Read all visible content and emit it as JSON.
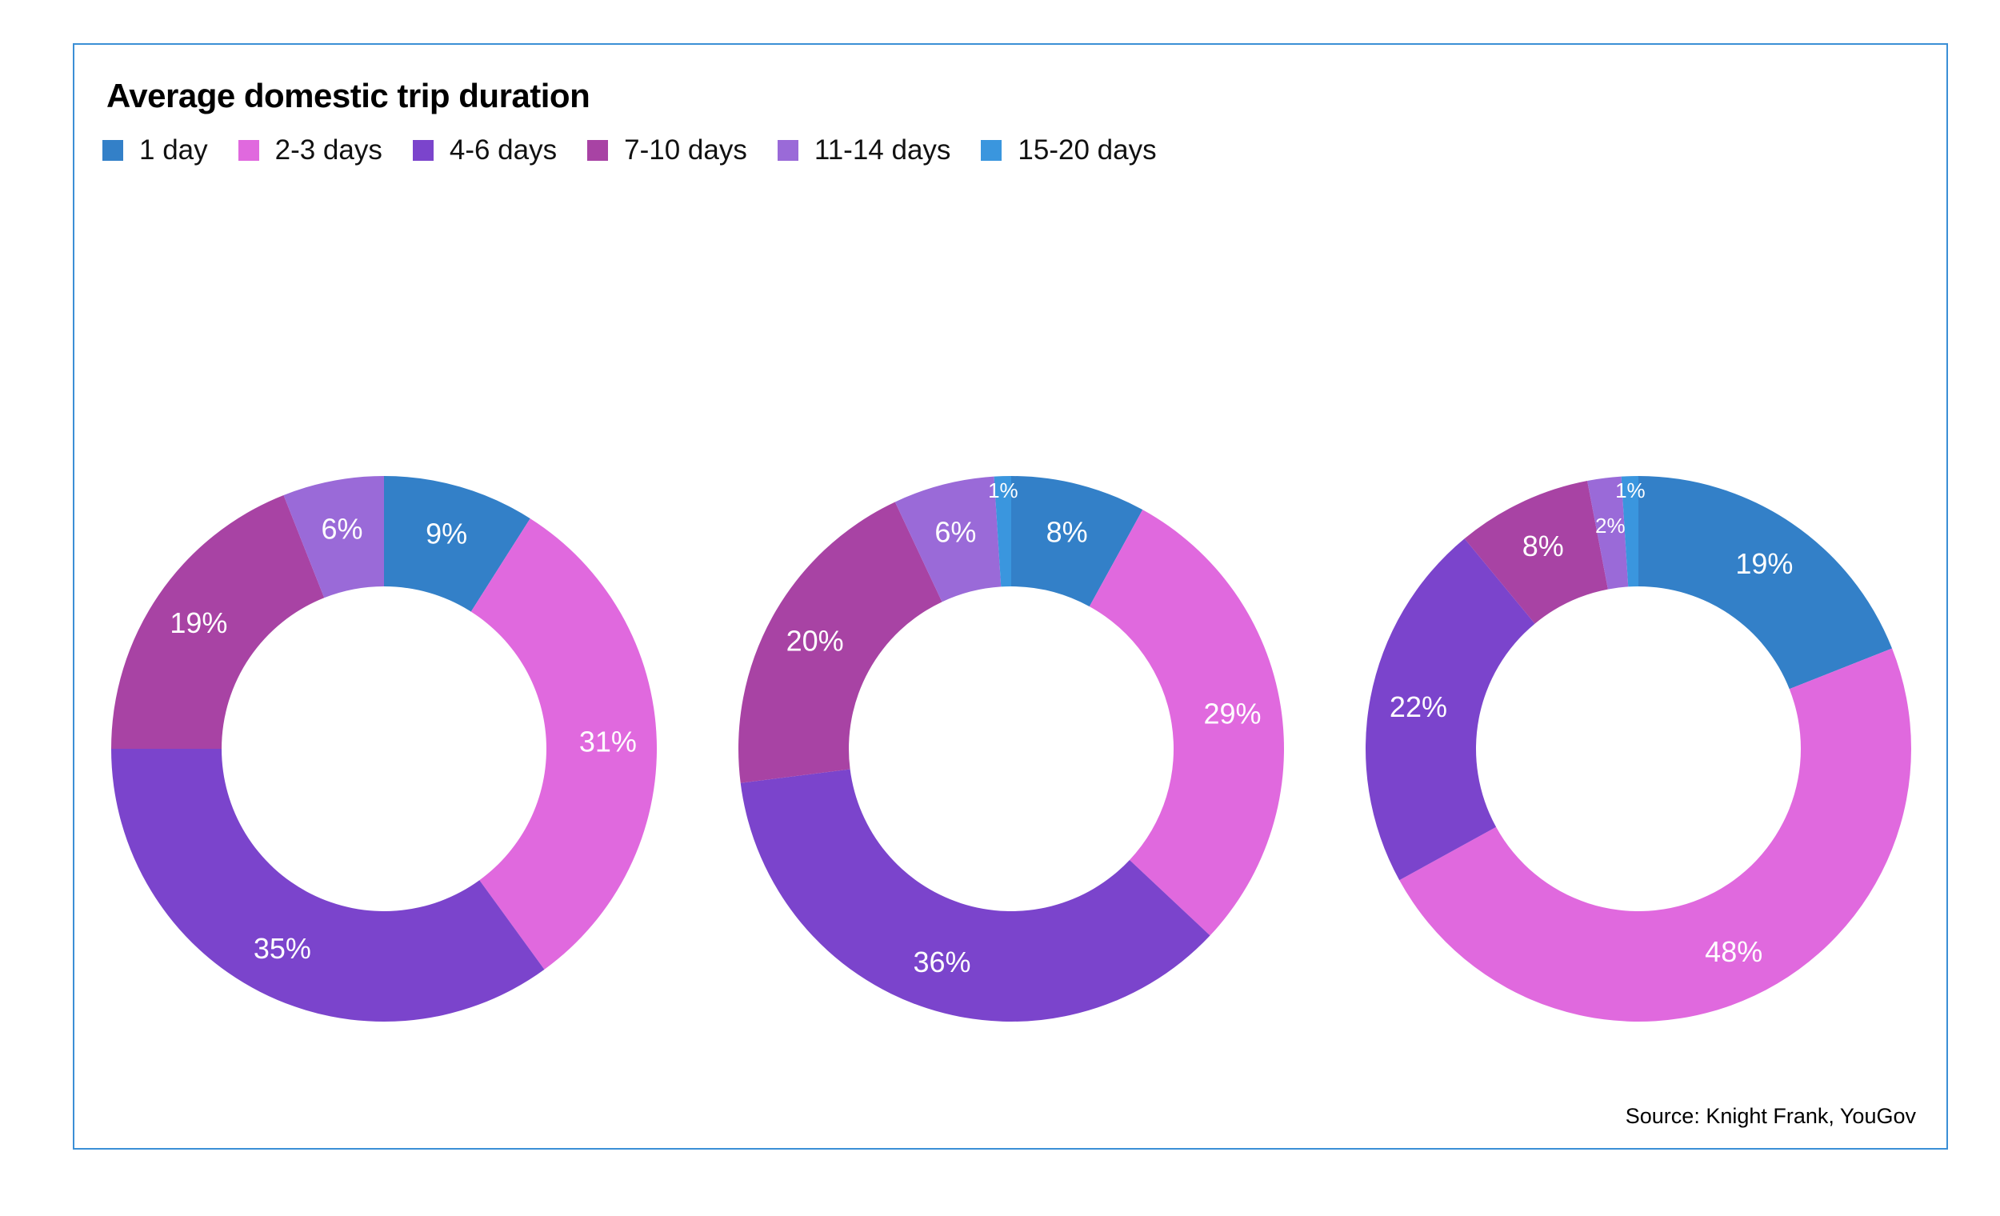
{
  "chart_data": [
    {
      "type": "pie",
      "donut": true,
      "title": "Average domestic trip duration",
      "categories": [
        "1 day",
        "2-3 days",
        "4-6 days",
        "7-10 days",
        "11-14 days",
        "15-20 days"
      ],
      "values": [
        9,
        31,
        35,
        19,
        6,
        0
      ],
      "labels": [
        "9%",
        "31%",
        "35%",
        "19%",
        "6%",
        ""
      ]
    },
    {
      "type": "pie",
      "donut": true,
      "categories": [
        "1 day",
        "2-3 days",
        "4-6 days",
        "7-10 days",
        "11-14 days",
        "15-20 days"
      ],
      "values": [
        8,
        29,
        36,
        20,
        6,
        1
      ],
      "labels": [
        "8%",
        "29%",
        "36%",
        "20%",
        "6%",
        "1%"
      ]
    },
    {
      "type": "pie",
      "donut": true,
      "categories": [
        "1 day",
        "2-3 days",
        "4-6 days",
        "7-10 days",
        "11-14 days",
        "15-20 days"
      ],
      "values": [
        19,
        48,
        22,
        8,
        2,
        1
      ],
      "labels": [
        "19%",
        "48%",
        "22%",
        "8%",
        "2%",
        "1%"
      ]
    }
  ],
  "title": "Average domestic trip duration",
  "legend": [
    {
      "label": "1 day",
      "color": "#3380C8"
    },
    {
      "label": "2-3 days",
      "color": "#E069DE"
    },
    {
      "label": "4-6 days",
      "color": "#7B44CC"
    },
    {
      "label": "7-10 days",
      "color": "#A843A4"
    },
    {
      "label": "11-14 days",
      "color": "#9A6AD8"
    },
    {
      "label": "15-20 days",
      "color": "#3A96DE"
    }
  ],
  "legend_placement": "top-left",
  "source": "Source: Knight Frank, YouGov"
}
